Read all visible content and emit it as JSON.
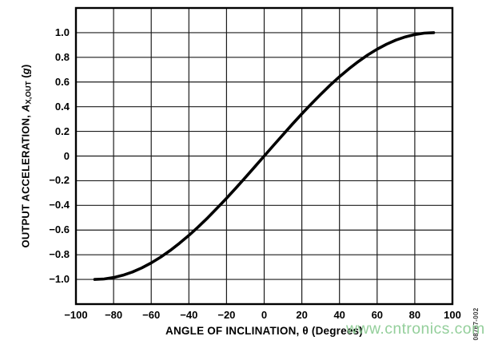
{
  "figure_id": "08767-002",
  "watermark": "www.cntronics.com",
  "colors": {
    "background": "#ffffff",
    "curve": "#000000",
    "grid": "#1c1c1c",
    "frame": "#000000",
    "text": "#000000",
    "watermark": "#8bcb93",
    "figure_id_text": "#3a3a3a"
  },
  "chart_data": {
    "type": "line",
    "title": "",
    "xlabel": "ANGLE OF INCLINATION, θ (Degrees)",
    "ylabel": "OUTPUT ACCELERATION, AX,OUT (g)",
    "ylabel_parts": {
      "prefix": "OUTPUT ACCELERATION, ",
      "symbol": "A",
      "sub": "X,OUT",
      "unit_open": " (",
      "unit_g": "g",
      "unit_close": ")"
    },
    "xlim": [
      -100,
      100
    ],
    "ylim": [
      -1.2,
      1.2
    ],
    "grid": true,
    "legend": "none",
    "x_ticks": [
      -100,
      -80,
      -60,
      -40,
      -20,
      0,
      20,
      40,
      60,
      80,
      100
    ],
    "x_tick_labels": [
      "−100",
      "−80",
      "−60",
      "−40",
      "−20",
      "0",
      "20",
      "40",
      "60",
      "80",
      "100"
    ],
    "y_tick_values": [
      1.0,
      0.8,
      0.6,
      0.4,
      0.2,
      0,
      -0.2,
      -0.4,
      -0.6,
      -0.8,
      -1.0
    ],
    "y_tick_labels": [
      "1.0",
      "0.8",
      "0.6",
      "0.4",
      "0.2",
      "0",
      "−0.2",
      "−0.4",
      "−0.6",
      "−0.8",
      "−1.0"
    ],
    "series": [
      {
        "name": "AX,OUT",
        "x": [
          -90,
          -85,
          -80,
          -75,
          -70,
          -65,
          -60,
          -55,
          -50,
          -45,
          -40,
          -35,
          -30,
          -25,
          -20,
          -15,
          -10,
          -5,
          0,
          5,
          10,
          15,
          20,
          25,
          30,
          35,
          40,
          45,
          50,
          55,
          60,
          65,
          70,
          75,
          80,
          85,
          90
        ],
        "y": [
          -1.0,
          -0.9962,
          -0.9848,
          -0.9659,
          -0.9397,
          -0.9063,
          -0.866,
          -0.8192,
          -0.766,
          -0.7071,
          -0.6428,
          -0.5736,
          -0.5,
          -0.4226,
          -0.342,
          -0.2588,
          -0.1736,
          -0.0872,
          0,
          0.0872,
          0.1736,
          0.2588,
          0.342,
          0.4226,
          0.5,
          0.5736,
          0.6428,
          0.7071,
          0.766,
          0.8192,
          0.866,
          0.9063,
          0.9397,
          0.9659,
          0.9848,
          0.9962,
          1.0
        ]
      }
    ]
  }
}
